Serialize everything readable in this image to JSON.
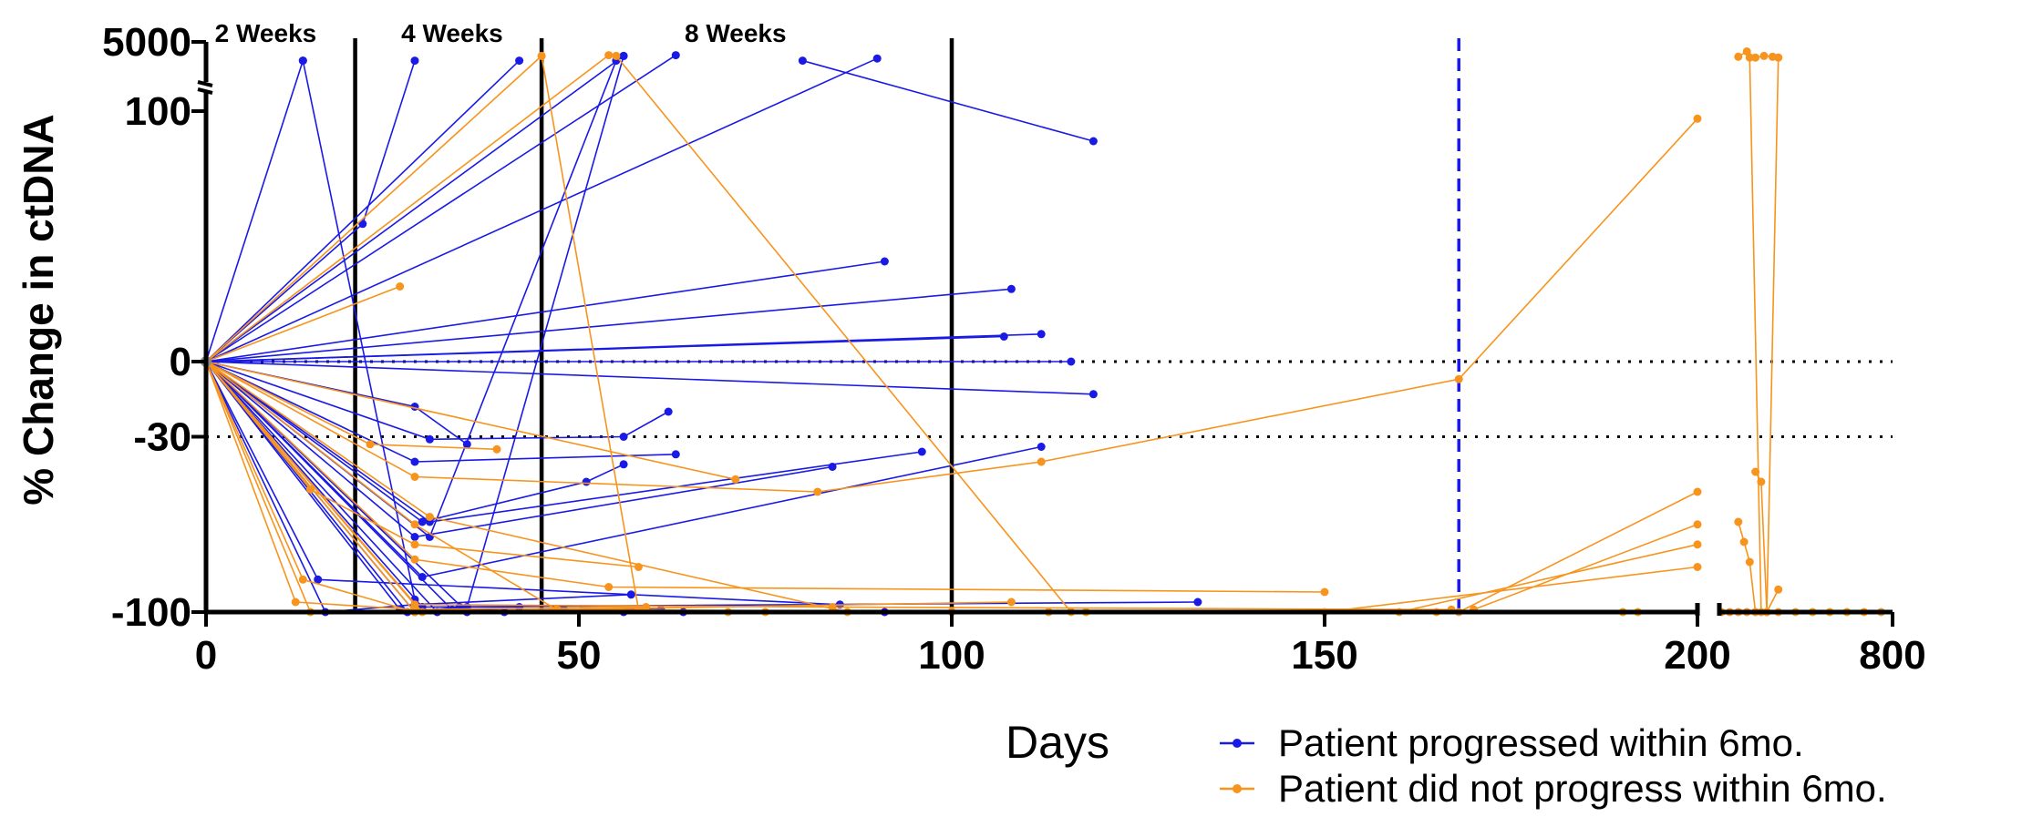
{
  "chart_data": {
    "type": "line",
    "ylabel": "% Change in ctDNA",
    "xlabel": "Days",
    "y_ticks": [
      {
        "value": -100,
        "label": "-100"
      },
      {
        "value": -30,
        "label": "-30"
      },
      {
        "value": 0,
        "label": "0"
      },
      {
        "value": 100,
        "label": "100"
      },
      {
        "value": 5000,
        "label": "5000"
      }
    ],
    "x_ticks": [
      {
        "value": 0,
        "label": "0"
      },
      {
        "value": 50,
        "label": "50"
      },
      {
        "value": 100,
        "label": "100"
      },
      {
        "value": 150,
        "label": "150"
      },
      {
        "value": 200,
        "label": "200"
      },
      {
        "value": 800,
        "label": "800"
      }
    ],
    "reference_lines_y": [
      0,
      -30
    ],
    "vertical_lines": [
      {
        "x": 20,
        "label": "2 Weeks",
        "label_x": 8
      },
      {
        "x": 45,
        "label": "4 Weeks",
        "label_x": 33
      },
      {
        "x": 100,
        "label": "8 Weeks",
        "label_x": 71
      },
      {
        "x": 168,
        "label": "",
        "dashed": true
      }
    ],
    "legend": {
      "position": "bottom-right",
      "entries": [
        {
          "label": "Patient progressed within 6mo.",
          "color": "#1a1ae6"
        },
        {
          "label": "Patient did not progress within 6mo.",
          "color": "#f7941d"
        }
      ]
    },
    "series": [
      {
        "color": "#1a1ae6",
        "points": [
          [
            0,
            0
          ],
          [
            13,
            1000
          ]
        ]
      },
      {
        "color": "#1a1ae6",
        "points": [
          [
            0,
            0
          ],
          [
            21,
            55
          ],
          [
            28,
            1000
          ]
        ]
      },
      {
        "color": "#1a1ae6",
        "points": [
          [
            0,
            0
          ],
          [
            42,
            1000
          ]
        ]
      },
      {
        "color": "#1a1ae6",
        "points": [
          [
            0,
            0
          ],
          [
            56,
            1500
          ]
        ]
      },
      {
        "color": "#1a1ae6",
        "points": [
          [
            0,
            0
          ],
          [
            63,
            1600
          ]
        ]
      },
      {
        "color": "#1a1ae6",
        "points": [
          [
            0,
            0
          ],
          [
            90,
            1200
          ]
        ]
      },
      {
        "color": "#1a1ae6",
        "points": [
          [
            0,
            0
          ],
          [
            91,
            40
          ]
        ]
      },
      {
        "color": "#1a1ae6",
        "points": [
          [
            0,
            0
          ],
          [
            107,
            10
          ]
        ]
      },
      {
        "color": "#1a1ae6",
        "points": [
          [
            0,
            0
          ],
          [
            108,
            29
          ]
        ]
      },
      {
        "color": "#1a1ae6",
        "points": [
          [
            0,
            0
          ],
          [
            112,
            11
          ]
        ]
      },
      {
        "color": "#1a1ae6",
        "points": [
          [
            0,
            0
          ],
          [
            116,
            0
          ]
        ]
      },
      {
        "color": "#1a1ae6",
        "points": [
          [
            0,
            0
          ],
          [
            119,
            -13
          ]
        ]
      },
      {
        "color": "#1a1ae6",
        "points": [
          [
            0,
            0
          ],
          [
            28,
            -18
          ],
          [
            35,
            -33
          ]
        ]
      },
      {
        "color": "#1a1ae6",
        "points": [
          [
            0,
            0
          ],
          [
            30,
            -31
          ],
          [
            56,
            -30
          ],
          [
            62,
            -20
          ]
        ]
      },
      {
        "color": "#1a1ae6",
        "points": [
          [
            0,
            0
          ],
          [
            28,
            -40
          ],
          [
            63,
            -37
          ]
        ]
      },
      {
        "color": "#1a1ae6",
        "points": [
          [
            0,
            0
          ],
          [
            29,
            -64
          ],
          [
            51,
            -48
          ],
          [
            56,
            -41
          ]
        ]
      },
      {
        "color": "#1a1ae6",
        "points": [
          [
            0,
            0
          ],
          [
            28,
            -70
          ],
          [
            84,
            -42
          ]
        ]
      },
      {
        "color": "#1a1ae6",
        "points": [
          [
            0,
            0
          ],
          [
            30,
            -64
          ],
          [
            96,
            -36
          ]
        ]
      },
      {
        "color": "#1a1ae6",
        "points": [
          [
            0,
            0
          ],
          [
            29,
            -86
          ],
          [
            112,
            -34
          ]
        ]
      },
      {
        "color": "#1a1ae6",
        "points": [
          [
            0,
            0
          ],
          [
            15,
            -87
          ],
          [
            85,
            -97
          ]
        ]
      },
      {
        "color": "#1a1ae6",
        "points": [
          [
            0,
            0
          ],
          [
            16,
            -100
          ],
          [
            28,
            -97
          ],
          [
            57,
            -93
          ]
        ]
      },
      {
        "color": "#1a1ae6",
        "points": [
          [
            0,
            0
          ],
          [
            29,
            -98
          ],
          [
            133,
            -96
          ]
        ]
      },
      {
        "color": "#1a1ae6",
        "points": [
          [
            0,
            0
          ],
          [
            27,
            -100
          ],
          [
            34,
            -98
          ],
          [
            42,
            -98
          ]
        ]
      },
      {
        "color": "#1a1ae6",
        "points": [
          [
            0,
            0
          ],
          [
            28,
            -100
          ],
          [
            48,
            -99
          ],
          [
            61,
            -99
          ]
        ]
      },
      {
        "color": "#1a1ae6",
        "points": [
          [
            0,
            0
          ],
          [
            33,
            -99
          ],
          [
            56,
            -100
          ]
        ]
      },
      {
        "color": "#1a1ae6",
        "points": [
          [
            0,
            0
          ],
          [
            26,
            -99
          ],
          [
            64,
            -100
          ]
        ]
      },
      {
        "color": "#1a1ae6",
        "points": [
          [
            0,
            0
          ],
          [
            35,
            -100
          ],
          [
            91,
            -100
          ]
        ]
      },
      {
        "color": "#1a1ae6",
        "points": [
          [
            0,
            0
          ],
          [
            31,
            -100
          ],
          [
            40,
            -100
          ]
        ]
      },
      {
        "color": "#1a1ae6",
        "points": [
          [
            13,
            1000
          ],
          [
            28,
            -95
          ]
        ]
      },
      {
        "color": "#1a1ae6",
        "points": [
          [
            56,
            1500
          ],
          [
            35,
            -98
          ]
        ]
      },
      {
        "color": "#1a1ae6",
        "points": [
          [
            0,
            0
          ],
          [
            30,
            -70
          ],
          [
            55,
            1000
          ]
        ]
      },
      {
        "color": "#1a1ae6",
        "points": [
          [
            80,
            1000
          ],
          [
            119,
            88
          ]
        ]
      },
      {
        "color": "#f7941d",
        "points": [
          [
            0,
            0
          ],
          [
            45,
            1500
          ]
        ]
      },
      {
        "color": "#f7941d",
        "points": [
          [
            0,
            0
          ],
          [
            54,
            1600
          ]
        ]
      },
      {
        "color": "#f7941d",
        "points": [
          [
            0,
            0
          ],
          [
            26,
            30
          ]
        ]
      },
      {
        "color": "#f7941d",
        "points": [
          [
            0,
            0
          ],
          [
            71,
            -47
          ]
        ]
      },
      {
        "color": "#f7941d",
        "points": [
          [
            0,
            0
          ],
          [
            22,
            -33
          ],
          [
            39,
            -35
          ]
        ]
      },
      {
        "color": "#f7941d",
        "points": [
          [
            0,
            0
          ],
          [
            28,
            -46
          ],
          [
            82,
            -52
          ],
          [
            112,
            -40
          ],
          [
            168,
            -7
          ],
          [
            200,
            97
          ]
        ]
      },
      {
        "color": "#f7941d",
        "points": [
          [
            0,
            0
          ],
          [
            14,
            -51
          ],
          [
            28,
            -73
          ],
          [
            58,
            -82
          ]
        ]
      },
      {
        "color": "#f7941d",
        "points": [
          [
            0,
            0
          ],
          [
            28,
            -79
          ],
          [
            54,
            -90
          ],
          [
            150,
            -92
          ]
        ]
      },
      {
        "color": "#f7941d",
        "points": [
          [
            0,
            0
          ],
          [
            13,
            -87
          ],
          [
            28,
            -100
          ],
          [
            108,
            -96
          ]
        ]
      },
      {
        "color": "#f7941d",
        "points": [
          [
            0,
            0
          ],
          [
            12,
            -96
          ],
          [
            28,
            -99
          ],
          [
            59,
            -98
          ]
        ]
      },
      {
        "color": "#f7941d",
        "points": [
          [
            0,
            0
          ],
          [
            28,
            -97
          ],
          [
            84,
            -98
          ],
          [
            167,
            -99
          ]
        ]
      },
      {
        "color": "#f7941d",
        "points": [
          [
            0,
            0
          ],
          [
            28,
            -65
          ],
          [
            47,
            -99
          ],
          [
            113,
            -100
          ]
        ]
      },
      {
        "color": "#f7941d",
        "points": [
          [
            0,
            0
          ],
          [
            14,
            -100
          ],
          [
            70,
            -100
          ],
          [
            118,
            -100
          ]
        ]
      },
      {
        "color": "#f7941d",
        "points": [
          [
            0,
            0
          ],
          [
            29,
            -100
          ],
          [
            100,
            -100
          ],
          [
            190,
            -100
          ]
        ]
      },
      {
        "color": "#f7941d",
        "points": [
          [
            0,
            0
          ],
          [
            28,
            -100
          ],
          [
            75,
            -100
          ],
          [
            192,
            -100
          ]
        ]
      },
      {
        "color": "#f7941d",
        "points": [
          [
            45,
            1500
          ],
          [
            58,
            -99
          ]
        ]
      },
      {
        "color": "#f7941d",
        "points": [
          [
            55,
            1500
          ],
          [
            116,
            -100
          ]
        ]
      },
      {
        "color": "#f7941d",
        "points": [
          [
            0,
            0
          ],
          [
            30,
            -62
          ],
          [
            86,
            -100
          ],
          [
            165,
            -100
          ]
        ]
      },
      {
        "color": "#f7941d",
        "points": [
          [
            168,
            -100
          ],
          [
            200,
            -52
          ]
        ]
      },
      {
        "color": "#f7941d",
        "points": [
          [
            170,
            -99
          ],
          [
            200,
            -65
          ]
        ]
      },
      {
        "color": "#f7941d",
        "points": [
          [
            160,
            -100
          ],
          [
            200,
            -73
          ]
        ]
      },
      {
        "color": "#f7941d",
        "points": [
          [
            150,
            -100
          ],
          [
            200,
            -82
          ]
        ]
      },
      {
        "color": "#f7941d",
        "points": [
          [
            201,
            -100
          ],
          [
            230,
            -100
          ],
          [
            260,
            -100
          ],
          [
            290,
            -100
          ],
          [
            320,
            -100
          ],
          [
            360,
            -100
          ],
          [
            400,
            -100
          ],
          [
            460,
            -100
          ],
          [
            520,
            -100
          ],
          [
            580,
            -100
          ],
          [
            640,
            -100
          ],
          [
            700,
            -100
          ],
          [
            760,
            -100
          ]
        ]
      },
      {
        "color": "#f7941d",
        "points": [
          [
            260,
            1400
          ],
          [
            290,
            2200
          ],
          [
            320,
            1300
          ],
          [
            350,
            1500
          ],
          [
            380,
            1400
          ],
          [
            400,
            1300
          ]
        ]
      },
      {
        "color": "#f7941d",
        "points": [
          [
            300,
            1300
          ],
          [
            340,
            -100
          ]
        ]
      },
      {
        "color": "#f7941d",
        "points": [
          [
            400,
            1300
          ],
          [
            360,
            -100
          ]
        ]
      },
      {
        "color": "#f7941d",
        "points": [
          [
            320,
            -44
          ],
          [
            340,
            -48
          ],
          [
            360,
            -100
          ]
        ]
      },
      {
        "color": "#f7941d",
        "points": [
          [
            260,
            -64
          ],
          [
            280,
            -72
          ],
          [
            300,
            -80
          ],
          [
            320,
            -100
          ]
        ]
      },
      {
        "color": "#f7941d",
        "points": [
          [
            360,
            -100
          ],
          [
            400,
            -91
          ]
        ]
      }
    ]
  }
}
